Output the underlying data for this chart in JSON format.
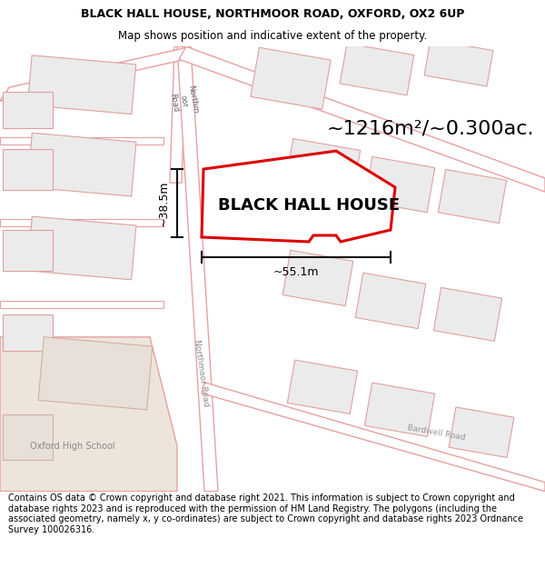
{
  "title": "BLACK HALL HOUSE, NORTHMOOR ROAD, OXFORD, OX2 6UP",
  "subtitle": "Map shows position and indicative extent of the property.",
  "footer": "Contains OS data © Crown copyright and database right 2021. This information is subject to Crown copyright and database rights 2023 and is reproduced with the permission of HM Land Registry. The polygons (including the associated geometry, namely x, y co-ordinates) are subject to Crown copyright and database rights 2023 Ordnance Survey 100026316.",
  "road_color": "#e8a0a0",
  "road_fill": "#ffffff",
  "building_outline": "#e0a0a0",
  "building_fill": "#ebebeb",
  "highlight_color": "#dd0000",
  "measure_color": "#111111",
  "area_text": "~1216m²/~0.300ac.",
  "label_text": "BLACK HALL HOUSE",
  "dim_width": "~55.1m",
  "dim_height": "~38.5m",
  "road_label_northmoor_upper": "Northm\noor\nRoad",
  "road_label_northmoor_lower": "Northmoor Road",
  "road_label_bardwell": "Bardwell Road",
  "school_label": "Oxford High School",
  "school_fill": "#ede5dc",
  "title_fontsize": 9,
  "subtitle_fontsize": 8.5,
  "footer_fontsize": 7,
  "label_fontsize": 13,
  "area_fontsize": 16
}
